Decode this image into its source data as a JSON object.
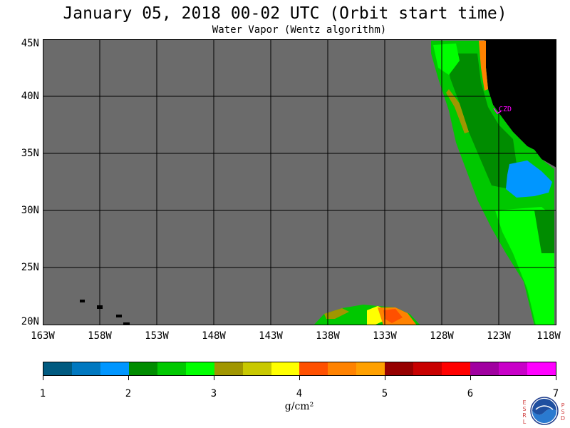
{
  "header": {
    "title": "January 05, 2018  00-02 UTC  (Orbit start time)",
    "subtitle": "Water Vapor (Wentz algorithm)"
  },
  "map": {
    "lat_labels": [
      "45N",
      "40N",
      "35N",
      "30N",
      "25N",
      "20N"
    ],
    "lon_labels": [
      "163W",
      "158W",
      "153W",
      "148W",
      "143W",
      "138W",
      "133W",
      "128W",
      "123W",
      "118W"
    ],
    "station_label": "CZD",
    "colors": {
      "no_data": "#6b6b6b",
      "land": "#000000",
      "grid": "#000000",
      "station": "#ff00ff"
    }
  },
  "colorbar": {
    "colors": [
      "#005a80",
      "#0078c0",
      "#0096ff",
      "#008c00",
      "#00c800",
      "#00ff00",
      "#a09600",
      "#c8c800",
      "#ffff00",
      "#ff5000",
      "#ff8200",
      "#ffa000",
      "#960000",
      "#c80000",
      "#ff0000",
      "#a000a0",
      "#c800c8",
      "#ff00ff"
    ],
    "labels": [
      "1",
      "2",
      "3",
      "4",
      "5",
      "6",
      "7"
    ],
    "unit": "g/cm²"
  },
  "logo": {
    "left_text": "ESRL",
    "right_text": "PSD",
    "name": "noaa-logo"
  }
}
